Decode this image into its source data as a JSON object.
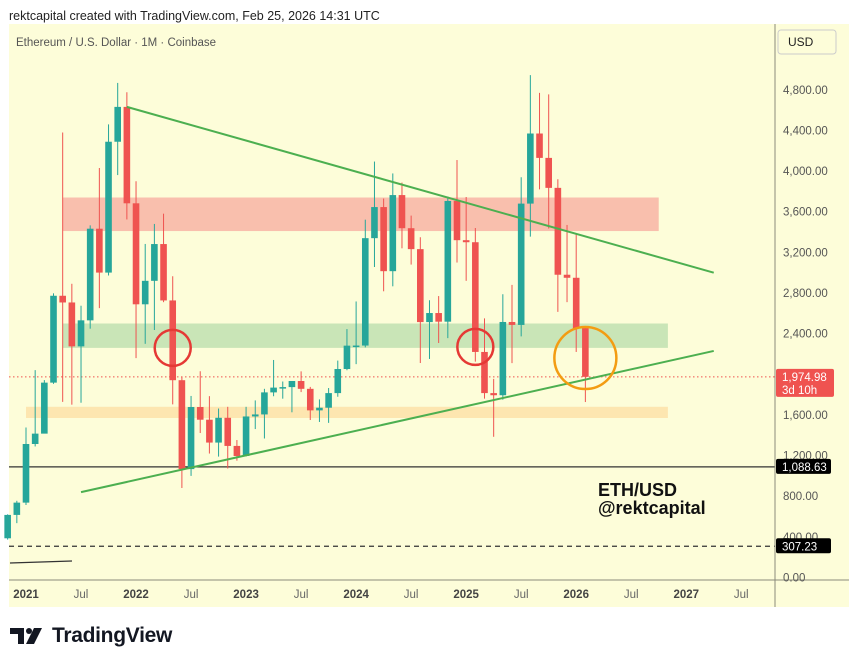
{
  "header": {
    "credit": "rektcapital created with TradingView.com, Feb 25, 2026 14:31 UTC",
    "symbol_title": "Ethereum / U.S. Dollar · 1M · Coinbase",
    "currency": "USD"
  },
  "annotation": {
    "line1": "ETH/USD",
    "line2": "@rektcapital"
  },
  "footer": {
    "brand": "TradingView"
  },
  "colors": {
    "background": "#fdfdd9",
    "up": "#26a69a",
    "down": "#ef5350",
    "resistance_zone": "#f8b4a4",
    "support_zone": "#bfe0b0",
    "low_zone": "#fde2a8",
    "trendline": "#4caf50",
    "circle_red": "#e53935",
    "circle_orange": "#f39c12"
  },
  "chart_data": {
    "type": "candlestick",
    "title": "Ethereum / U.S. Dollar · 1M · Coinbase",
    "ylim": [
      0,
      4800
    ],
    "y_ticks": [
      "4,800.00",
      "4,400.00",
      "4,000.00",
      "3,600.00",
      "3,200.00",
      "2,800.00",
      "2,400.00",
      "1,600.00",
      "1,200.00",
      "800.00",
      "400.00",
      "0.00"
    ],
    "y_tick_values": [
      4800,
      4400,
      4000,
      3600,
      3200,
      2800,
      2400,
      1600,
      1200,
      800,
      400,
      0
    ],
    "x_ticks": [
      {
        "label": "2021",
        "month": "2021-01",
        "bold": true
      },
      {
        "label": "Jul",
        "month": "2021-07"
      },
      {
        "label": "2022",
        "month": "2022-01",
        "bold": true
      },
      {
        "label": "Jul",
        "month": "2022-07"
      },
      {
        "label": "2023",
        "month": "2023-01",
        "bold": true
      },
      {
        "label": "Jul",
        "month": "2023-07"
      },
      {
        "label": "2024",
        "month": "2024-01",
        "bold": true
      },
      {
        "label": "Jul",
        "month": "2024-07"
      },
      {
        "label": "2025",
        "month": "2025-01",
        "bold": true
      },
      {
        "label": "Jul",
        "month": "2025-07"
      },
      {
        "label": "2026",
        "month": "2026-01",
        "bold": true
      },
      {
        "label": "Jul",
        "month": "2026-07"
      },
      {
        "label": "2027",
        "month": "2027-01",
        "bold": true
      },
      {
        "label": "Jul",
        "month": "2027-07"
      }
    ],
    "ohlc": [
      [
        "2020-11",
        386,
        622,
        373,
        616
      ],
      [
        "2020-12",
        616,
        755,
        535,
        737
      ],
      [
        "2021-01",
        737,
        1476,
        714,
        1314
      ],
      [
        "2021-02",
        1314,
        2041,
        1290,
        1416
      ],
      [
        "2021-03",
        1416,
        1943,
        1428,
        1918
      ],
      [
        "2021-04",
        1918,
        2797,
        1906,
        2773
      ],
      [
        "2021-05",
        2773,
        4380,
        1728,
        2707
      ],
      [
        "2021-06",
        2707,
        2891,
        1701,
        2275
      ],
      [
        "2021-07",
        2275,
        2675,
        1720,
        2531
      ],
      [
        "2021-08",
        2531,
        3466,
        2449,
        3433
      ],
      [
        "2021-09",
        3433,
        4030,
        2651,
        3001
      ],
      [
        "2021-10",
        3001,
        4460,
        2972,
        4289
      ],
      [
        "2021-11",
        4289,
        4868,
        3961,
        4632
      ],
      [
        "2021-12",
        4632,
        4776,
        3524,
        3683
      ],
      [
        "2022-01",
        3683,
        3900,
        2159,
        2689
      ],
      [
        "2022-02",
        2689,
        3283,
        2300,
        2920
      ],
      [
        "2022-03",
        2920,
        3480,
        2436,
        3282
      ],
      [
        "2022-04",
        3282,
        3581,
        2710,
        2727
      ],
      [
        "2022-05",
        2727,
        2965,
        1704,
        1942
      ],
      [
        "2022-06",
        1942,
        1973,
        881,
        1067
      ],
      [
        "2022-07",
        1067,
        1787,
        1000,
        1678
      ],
      [
        "2022-08",
        1678,
        2030,
        1422,
        1553
      ],
      [
        "2022-09",
        1553,
        1785,
        1220,
        1328
      ],
      [
        "2022-10",
        1328,
        1663,
        1190,
        1572
      ],
      [
        "2022-11",
        1572,
        1680,
        1073,
        1295
      ],
      [
        "2022-12",
        1295,
        1353,
        1150,
        1196
      ],
      [
        "2023-01",
        1196,
        1680,
        1191,
        1585
      ],
      [
        "2023-02",
        1585,
        1743,
        1461,
        1605
      ],
      [
        "2023-03",
        1605,
        1857,
        1368,
        1822
      ],
      [
        "2023-04",
        1822,
        2141,
        1784,
        1869
      ],
      [
        "2023-05",
        1869,
        1929,
        1760,
        1874
      ],
      [
        "2023-06",
        1874,
        1930,
        1626,
        1934
      ],
      [
        "2023-07",
        1934,
        2029,
        1825,
        1857
      ],
      [
        "2023-08",
        1857,
        1876,
        1550,
        1645
      ],
      [
        "2023-09",
        1645,
        1753,
        1531,
        1671
      ],
      [
        "2023-10",
        1671,
        1865,
        1522,
        1815
      ],
      [
        "2023-11",
        1815,
        2135,
        1779,
        2052
      ],
      [
        "2023-12",
        2052,
        2445,
        2040,
        2282
      ],
      [
        "2024-01",
        2282,
        2717,
        2100,
        2283
      ],
      [
        "2024-02",
        2283,
        3522,
        2265,
        3340
      ],
      [
        "2024-03",
        3340,
        4094,
        3056,
        3646
      ],
      [
        "2024-04",
        3646,
        3730,
        2817,
        3015
      ],
      [
        "2024-05",
        3015,
        3977,
        2866,
        3764
      ],
      [
        "2024-06",
        3764,
        3887,
        3240,
        3438
      ],
      [
        "2024-07",
        3438,
        3562,
        3080,
        3232
      ],
      [
        "2024-08",
        3232,
        3349,
        2111,
        2514
      ],
      [
        "2024-09",
        2514,
        2729,
        2151,
        2603
      ],
      [
        "2024-10",
        2603,
        2770,
        2308,
        2518
      ],
      [
        "2024-11",
        2518,
        3750,
        2356,
        3706
      ],
      [
        "2024-12",
        3706,
        4109,
        3100,
        3320
      ],
      [
        "2025-01",
        3320,
        3745,
        2920,
        3300
      ],
      [
        "2025-02",
        3300,
        3440,
        2125,
        2220
      ],
      [
        "2025-03",
        2220,
        2550,
        1760,
        1815
      ],
      [
        "2025-04",
        1815,
        1955,
        1385,
        1794
      ],
      [
        "2025-05",
        1794,
        2788,
        1750,
        2515
      ],
      [
        "2025-06",
        2515,
        2880,
        2110,
        2486
      ],
      [
        "2025-07",
        2486,
        3940,
        2373,
        3680
      ],
      [
        "2025-08",
        3680,
        4945,
        3355,
        4370
      ],
      [
        "2025-09",
        4370,
        4770,
        3820,
        4130
      ],
      [
        "2025-10",
        4130,
        4755,
        3435,
        3835
      ],
      [
        "2025-11",
        3835,
        3920,
        2615,
        2980
      ],
      [
        "2025-12",
        2980,
        3470,
        2710,
        2950
      ],
      [
        "2026-01",
        2950,
        3390,
        2220,
        2455
      ],
      [
        "2026-02",
        2455,
        2470,
        1727,
        1974.98
      ]
    ],
    "zones": [
      {
        "name": "resistance",
        "from": 3410,
        "to": 3740,
        "start": "2021-05",
        "end": "2026-10"
      },
      {
        "name": "support",
        "from": 2260,
        "to": 2500,
        "start": "2021-05",
        "end": "2026-11"
      },
      {
        "name": "low-support",
        "from": 1570,
        "to": 1680,
        "start": "2021-01",
        "end": "2026-11"
      }
    ],
    "trendlines": [
      {
        "name": "descending-resistance",
        "from": [
          "2021-12",
          4632
        ],
        "to": [
          "2027-04",
          3000
        ]
      },
      {
        "name": "ascending-support",
        "from": [
          "2021-07",
          840
        ],
        "to": [
          "2027-04",
          2230
        ]
      }
    ],
    "price_lines": [
      {
        "name": "current-price",
        "value": 1974.98,
        "label": "1,974.98",
        "sublabel": "3d 10h",
        "style": "dotted"
      },
      {
        "name": "level-1088",
        "value": 1088.63,
        "label": "1,088.63",
        "style": "solid"
      },
      {
        "name": "level-307",
        "value": 307.23,
        "label": "307.23",
        "style": "dashed"
      }
    ],
    "circles": [
      {
        "name": "red-circle-2022",
        "month": "2022-05",
        "price": 2260,
        "color": "red"
      },
      {
        "name": "red-circle-2025",
        "month": "2025-02",
        "price": 2270,
        "color": "red"
      },
      {
        "name": "orange-circle-2026",
        "month": "2026-02",
        "price": 2160,
        "color": "orange"
      }
    ]
  }
}
